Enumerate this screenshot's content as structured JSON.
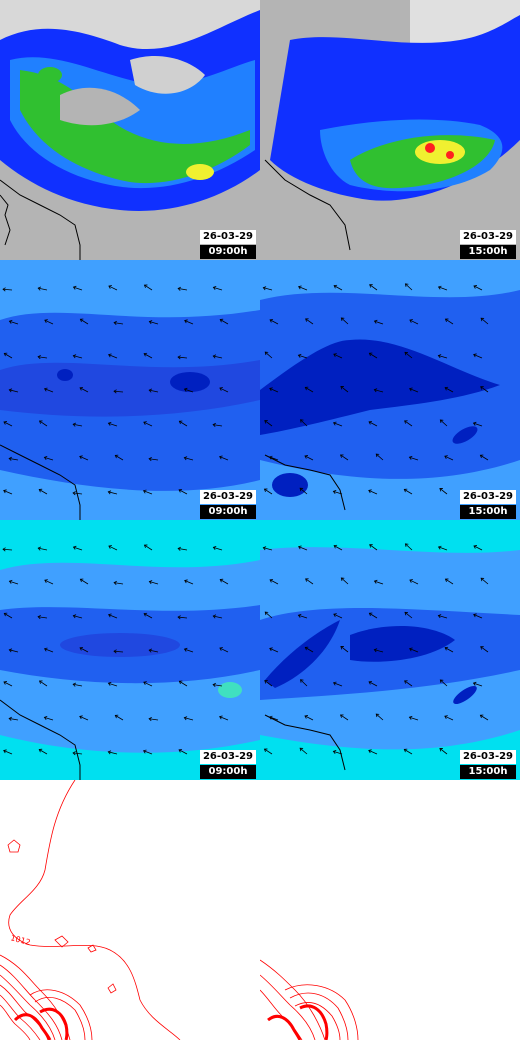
{
  "panels": [
    {
      "id": "r1l",
      "kind": "precip",
      "date": "26-03-29",
      "time": "09:00h"
    },
    {
      "id": "r1r",
      "kind": "precip",
      "date": "26-03-29",
      "time": "15:00h"
    },
    {
      "id": "r2l",
      "kind": "wind",
      "date": "26-03-29",
      "time": "09:00h"
    },
    {
      "id": "r2r",
      "kind": "wind",
      "date": "26-03-29",
      "time": "15:00h"
    },
    {
      "id": "r3l",
      "kind": "wind",
      "date": "26-03-29",
      "time": "09:00h"
    },
    {
      "id": "r3r",
      "kind": "wind",
      "date": "26-03-29",
      "time": "15:00h"
    },
    {
      "id": "r4l",
      "kind": "pressure-contours"
    },
    {
      "id": "r4r",
      "kind": "pressure-contours"
    }
  ],
  "contour_label": "1012",
  "colors": {
    "precip_light": "#1030ff",
    "precip_mid": "#2080ff",
    "precip_green": "#30c030",
    "precip_yellow": "#f0f030",
    "precip_red": "#ff2020",
    "wind_light": "#40a0ff",
    "wind_mid": "#2060f0",
    "wind_dark": "#0020c0",
    "cyan": "#00e0f0",
    "contour": "#ff0000"
  }
}
